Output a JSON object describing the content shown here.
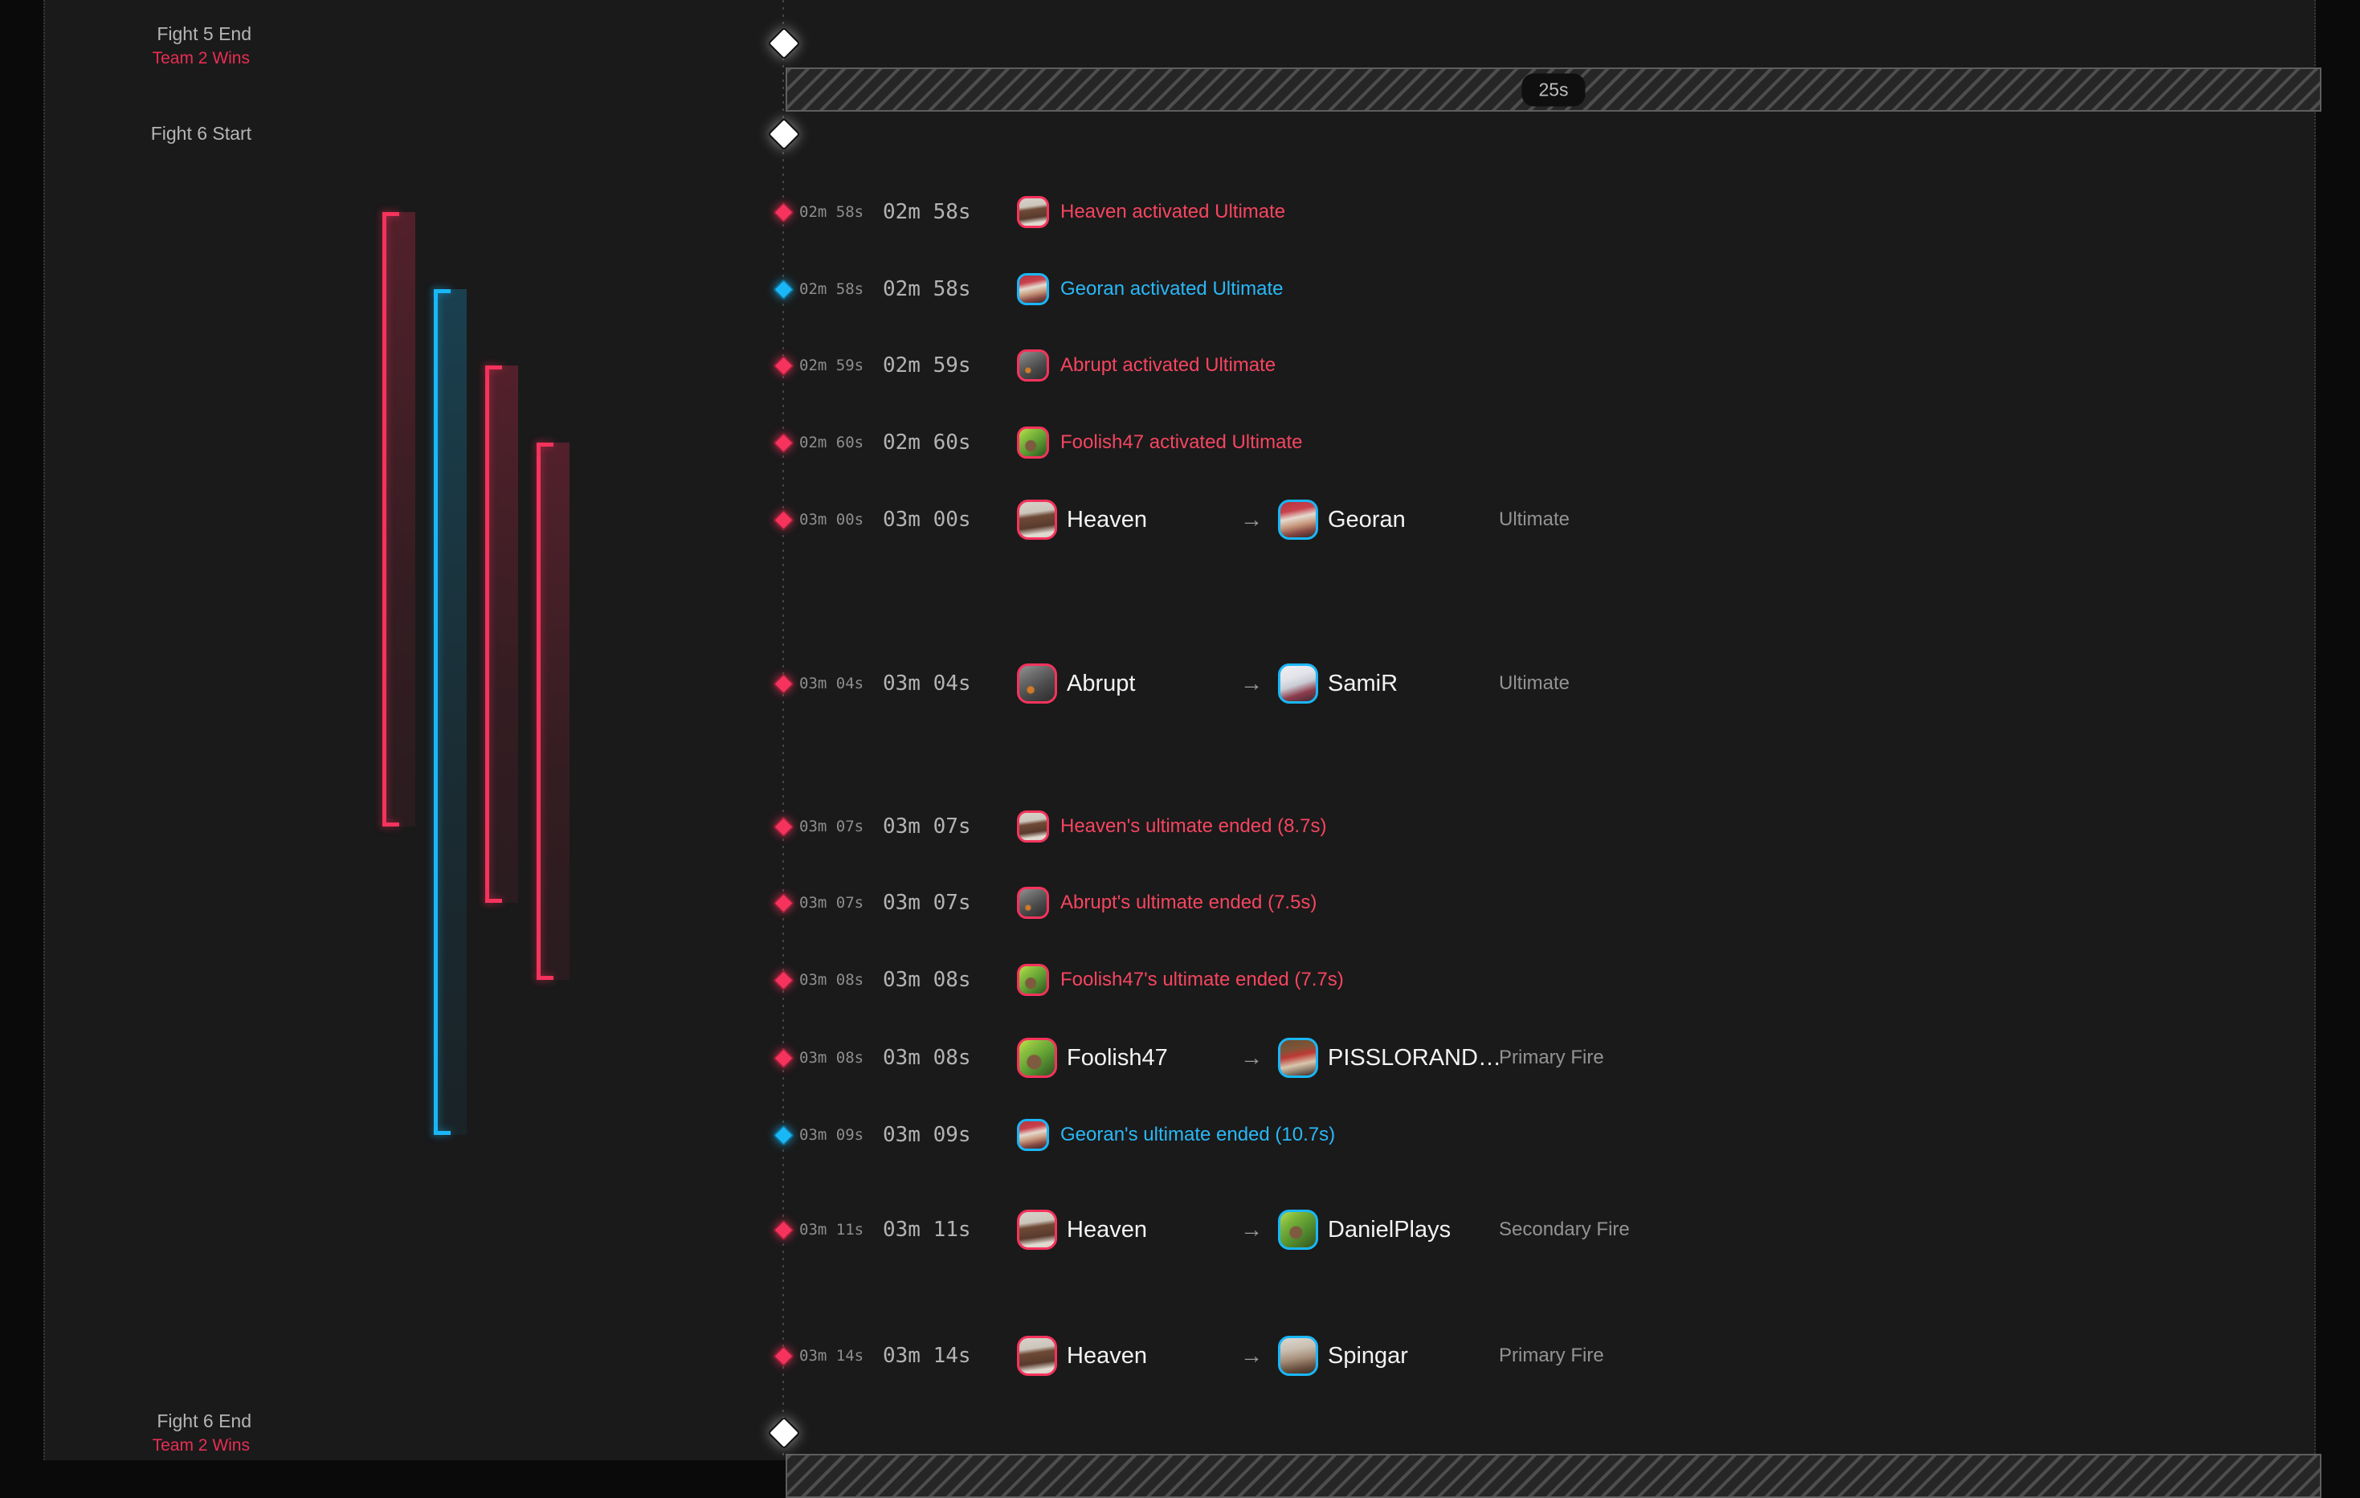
{
  "theme": {
    "background": "#1a1a1a",
    "side_strip": "#0a0a0a",
    "red": "#f5335c",
    "blue": "#1ab7f7",
    "text_light": "#b5b5b5",
    "text_white": "#f3f3f3",
    "text_gray": "#939393",
    "result_red": "#e92e54"
  },
  "icons": {
    "arrow": "→",
    "fight_marker": "diamond",
    "event_marker": "diamond"
  },
  "fight_markers": [
    {
      "label": "Fight 5 End",
      "result": "Team 2 Wins"
    },
    {
      "label": "Fight 6 Start",
      "result": ""
    },
    {
      "label": "Fight 6 End",
      "result": "Team 2 Wins"
    }
  ],
  "gap": {
    "duration_label": "25s"
  },
  "ultimate_bars": [
    {
      "player": "Heaven",
      "team": "red",
      "start": "02m 58s",
      "end": "03m 07s",
      "duration": "8.7s"
    },
    {
      "player": "Georan",
      "team": "blue",
      "start": "02m 58s",
      "end": "03m 09s",
      "duration": "10.7s"
    },
    {
      "player": "Abrupt",
      "team": "red",
      "start": "02m 59s",
      "end": "03m 07s",
      "duration": "7.5s"
    },
    {
      "player": "Foolish47",
      "team": "red",
      "start": "02m 60s",
      "end": "03m 08s",
      "duration": "7.7s"
    }
  ],
  "events": [
    {
      "kind": "status",
      "team": "red",
      "time_small": "02m 58s",
      "time_large": "02m 58s",
      "player": "Heaven",
      "text": "Heaven activated Ultimate"
    },
    {
      "kind": "status",
      "team": "blue",
      "time_small": "02m 58s",
      "time_large": "02m 58s",
      "player": "Georan",
      "text": "Georan activated Ultimate"
    },
    {
      "kind": "status",
      "team": "red",
      "time_small": "02m 59s",
      "time_large": "02m 59s",
      "player": "Abrupt",
      "text": "Abrupt activated Ultimate"
    },
    {
      "kind": "status",
      "team": "red",
      "time_small": "02m 60s",
      "time_large": "02m 60s",
      "player": "Foolish47",
      "text": "Foolish47 activated Ultimate"
    },
    {
      "kind": "kill",
      "time_small": "03m 00s",
      "time_large": "03m 00s",
      "source": {
        "name": "Heaven",
        "team": "red"
      },
      "target": {
        "name": "Georan",
        "team": "blue"
      },
      "method": "Ultimate"
    },
    {
      "kind": "kill",
      "time_small": "03m 04s",
      "time_large": "03m 04s",
      "source": {
        "name": "Abrupt",
        "team": "red"
      },
      "target": {
        "name": "SamiR",
        "team": "blue"
      },
      "method": "Ultimate"
    },
    {
      "kind": "status",
      "team": "red",
      "time_small": "03m 07s",
      "time_large": "03m 07s",
      "player": "Heaven",
      "text": "Heaven's ultimate ended (8.7s)"
    },
    {
      "kind": "status",
      "team": "red",
      "time_small": "03m 07s",
      "time_large": "03m 07s",
      "player": "Abrupt",
      "text": "Abrupt's ultimate ended (7.5s)"
    },
    {
      "kind": "status",
      "team": "red",
      "time_small": "03m 08s",
      "time_large": "03m 08s",
      "player": "Foolish47",
      "text": "Foolish47's ultimate ended (7.7s)"
    },
    {
      "kind": "kill",
      "time_small": "03m 08s",
      "time_large": "03m 08s",
      "source": {
        "name": "Foolish47",
        "team": "red"
      },
      "target": {
        "name": "PISSLORAND…",
        "team": "blue"
      },
      "method": "Primary Fire"
    },
    {
      "kind": "status",
      "team": "blue",
      "time_small": "03m 09s",
      "time_large": "03m 09s",
      "player": "Georan",
      "text": "Georan's ultimate ended (10.7s)"
    },
    {
      "kind": "kill",
      "time_small": "03m 11s",
      "time_large": "03m 11s",
      "source": {
        "name": "Heaven",
        "team": "red"
      },
      "target": {
        "name": "DanielPlays",
        "team": "blue"
      },
      "method": "Secondary Fire"
    },
    {
      "kind": "kill",
      "time_small": "03m 14s",
      "time_large": "03m 14s",
      "source": {
        "name": "Heaven",
        "team": "red"
      },
      "target": {
        "name": "Spingar",
        "team": "blue"
      },
      "method": "Primary Fire"
    }
  ]
}
